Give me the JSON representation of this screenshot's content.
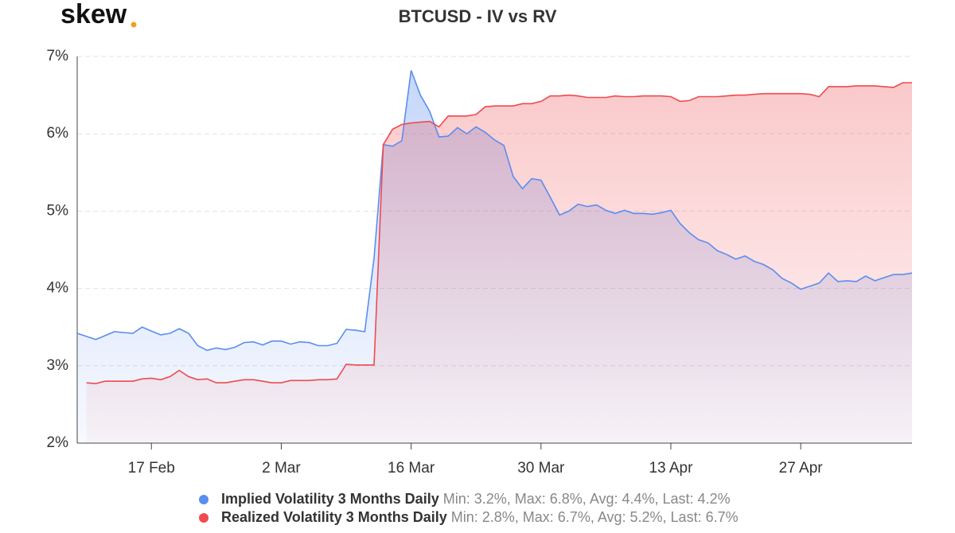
{
  "logo": "skew",
  "chart_data": {
    "type": "area",
    "title": "BTCUSD - IV vs RV",
    "x": [
      "9 Feb",
      "10 Feb",
      "11 Feb",
      "12 Feb",
      "13 Feb",
      "14 Feb",
      "15 Feb",
      "16 Feb",
      "17 Feb",
      "18 Feb",
      "19 Feb",
      "20 Feb",
      "21 Feb",
      "22 Feb",
      "23 Feb",
      "24 Feb",
      "25 Feb",
      "26 Feb",
      "27 Feb",
      "28 Feb",
      "29 Feb",
      "1 Mar",
      "2 Mar",
      "3 Mar",
      "4 Mar",
      "5 Mar",
      "6 Mar",
      "7 Mar",
      "8 Mar",
      "9 Mar",
      "10 Mar",
      "11 Mar",
      "12 Mar",
      "13 Mar",
      "14 Mar",
      "15 Mar",
      "16 Mar",
      "17 Mar",
      "18 Mar",
      "19 Mar",
      "20 Mar",
      "21 Mar",
      "22 Mar",
      "23 Mar",
      "24 Mar",
      "25 Mar",
      "26 Mar",
      "27 Mar",
      "28 Mar",
      "29 Mar",
      "30 Mar",
      "31 Mar",
      "1 Apr",
      "2 Apr",
      "3 Apr",
      "4 Apr",
      "5 Apr",
      "6 Apr",
      "7 Apr",
      "8 Apr",
      "9 Apr",
      "10 Apr",
      "11 Apr",
      "12 Apr",
      "13 Apr",
      "14 Apr",
      "15 Apr",
      "16 Apr",
      "17 Apr",
      "18 Apr",
      "19 Apr",
      "20 Apr",
      "21 Apr",
      "22 Apr",
      "23 Apr",
      "24 Apr",
      "25 Apr",
      "26 Apr",
      "27 Apr",
      "28 Apr",
      "29 Apr",
      "30 Apr",
      "1 May",
      "2 May",
      "3 May",
      "4 May",
      "5 May",
      "6 May",
      "7 May",
      "8 May",
      "9 May"
    ],
    "xticks": [
      "17 Feb",
      "2 Mar",
      "16 Mar",
      "30 Mar",
      "13 Apr",
      "27 Apr"
    ],
    "ylim": [
      2,
      7
    ],
    "yticks": [
      {
        "value": 2,
        "label": "2%"
      },
      {
        "value": 3,
        "label": "3%"
      },
      {
        "value": 4,
        "label": "4%"
      },
      {
        "value": 5,
        "label": "5%"
      },
      {
        "value": 6,
        "label": "6%"
      },
      {
        "value": 7,
        "label": "7%"
      }
    ],
    "grid": true,
    "series": [
      {
        "name": "Implied Volatility 3 Months Daily",
        "summary": "Min: 3.2%, Max: 6.8%, Avg: 4.4%, Last: 4.2%",
        "color": "#5b8def",
        "values": [
          3.42,
          3.38,
          3.34,
          3.39,
          3.44,
          3.43,
          3.42,
          3.5,
          3.45,
          3.4,
          3.42,
          3.48,
          3.42,
          3.26,
          3.2,
          3.23,
          3.21,
          3.24,
          3.3,
          3.31,
          3.27,
          3.32,
          3.32,
          3.28,
          3.31,
          3.3,
          3.26,
          3.26,
          3.29,
          3.47,
          3.46,
          3.44,
          4.39,
          5.86,
          5.84,
          5.91,
          6.82,
          6.5,
          6.29,
          5.96,
          5.97,
          6.08,
          6.0,
          6.09,
          6.02,
          5.92,
          5.85,
          5.45,
          5.29,
          5.42,
          5.4,
          5.18,
          4.95,
          5.0,
          5.09,
          5.06,
          5.08,
          5.01,
          4.97,
          5.01,
          4.97,
          4.97,
          4.96,
          4.98,
          5.01,
          4.84,
          4.72,
          4.63,
          4.59,
          4.49,
          4.44,
          4.38,
          4.42,
          4.35,
          4.31,
          4.24,
          4.13,
          4.07,
          3.99,
          4.03,
          4.07,
          4.2,
          4.09,
          4.1,
          4.09,
          4.16,
          4.1,
          4.14,
          4.18,
          4.18,
          4.2
        ]
      },
      {
        "name": "Realized Volatility 3 Months Daily",
        "summary": "Min: 2.8%, Max: 6.7%, Avg: 5.2%, Last: 6.7%",
        "color": "#ef4a4f",
        "values": [
          null,
          2.78,
          2.77,
          2.8,
          2.8,
          2.8,
          2.8,
          2.83,
          2.84,
          2.82,
          2.86,
          2.94,
          2.86,
          2.82,
          2.83,
          2.78,
          2.78,
          2.8,
          2.82,
          2.82,
          2.8,
          2.78,
          2.78,
          2.81,
          2.81,
          2.81,
          2.82,
          2.82,
          2.83,
          3.02,
          3.01,
          3.01,
          3.01,
          5.86,
          6.06,
          6.12,
          6.14,
          6.15,
          6.16,
          6.09,
          6.23,
          6.23,
          6.23,
          6.25,
          6.35,
          6.36,
          6.36,
          6.36,
          6.39,
          6.39,
          6.42,
          6.49,
          6.49,
          6.5,
          6.49,
          6.47,
          6.47,
          6.47,
          6.49,
          6.48,
          6.48,
          6.49,
          6.49,
          6.49,
          6.48,
          6.42,
          6.43,
          6.48,
          6.48,
          6.48,
          6.49,
          6.5,
          6.5,
          6.51,
          6.52,
          6.52,
          6.52,
          6.52,
          6.52,
          6.51,
          6.48,
          6.61,
          6.61,
          6.61,
          6.62,
          6.62,
          6.62,
          6.61,
          6.6,
          6.66,
          6.66
        ]
      }
    ]
  }
}
